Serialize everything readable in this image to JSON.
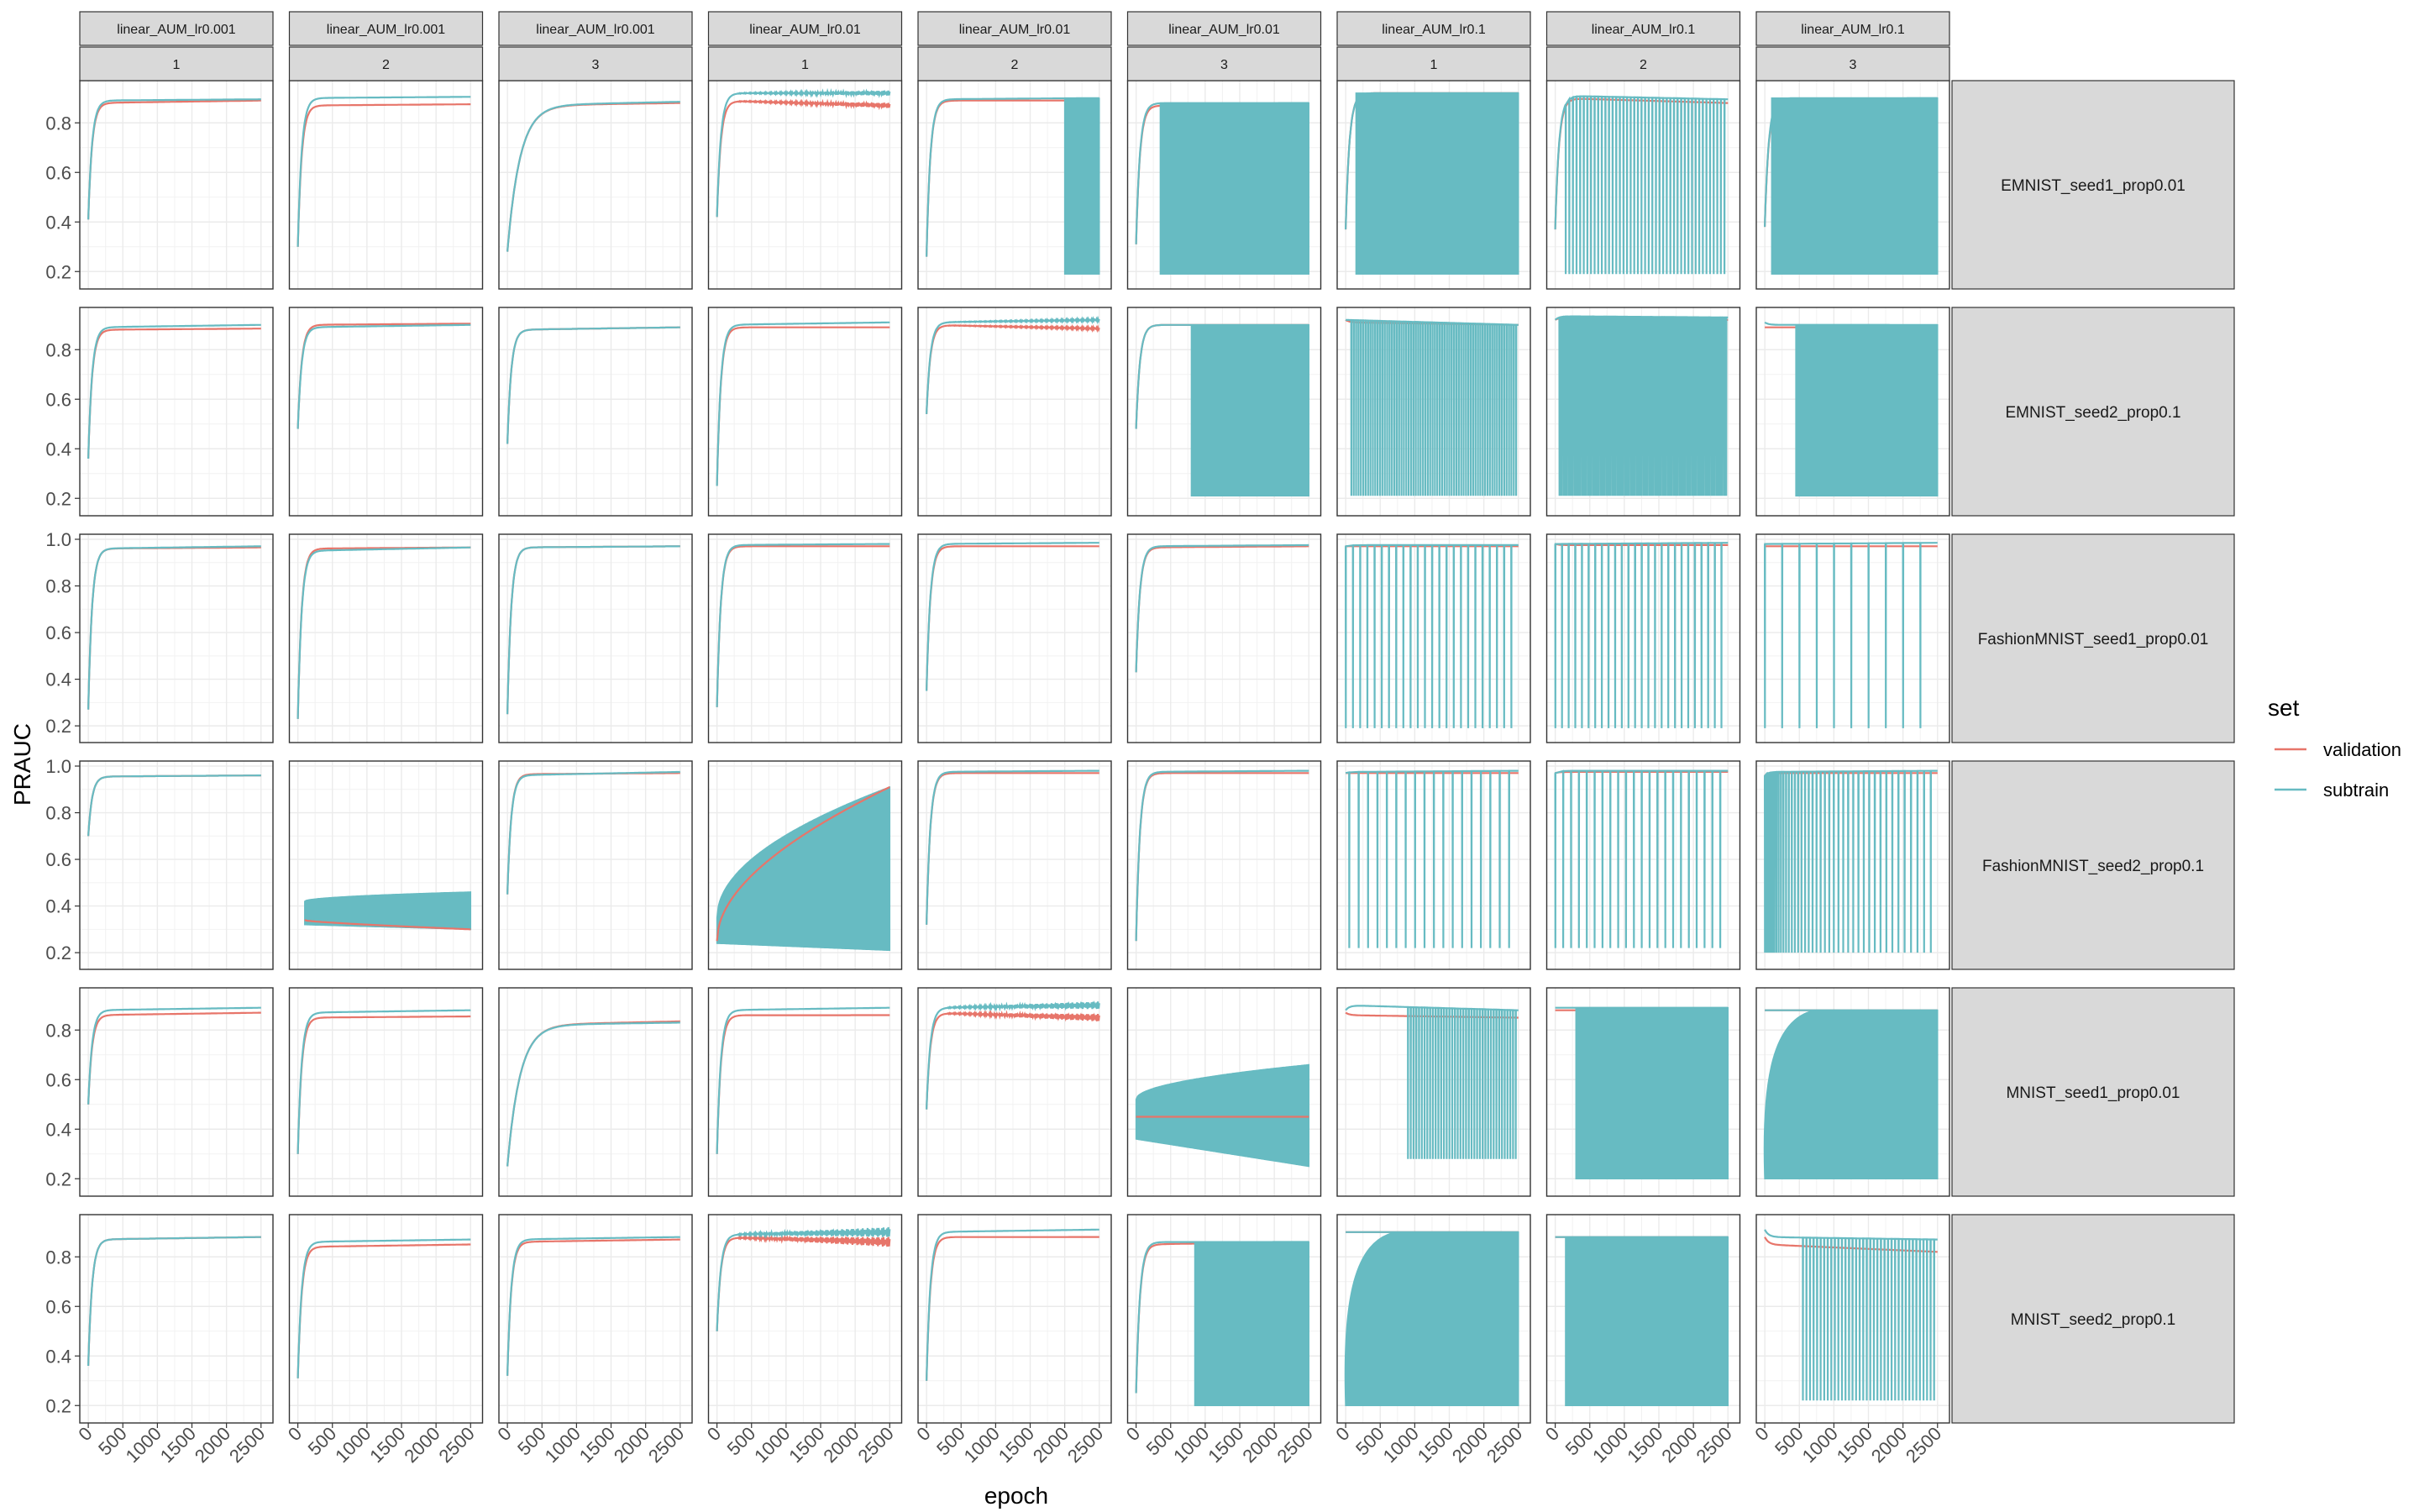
{
  "chart_data": {
    "type": "line",
    "title": "",
    "xlabel": "epoch",
    "ylabel": "PRAUC",
    "xlim": [
      0,
      2500
    ],
    "x_ticks": [
      0,
      500,
      1000,
      1500,
      2000,
      2500
    ],
    "grid": true,
    "legend": {
      "title": "set",
      "position": "right",
      "entries": [
        {
          "name": "validation",
          "color": "#E7756A"
        },
        {
          "name": "subtrain",
          "color": "#67BBC2"
        }
      ]
    },
    "column_facets": [
      {
        "model": "linear_AUM_lr0.001",
        "seed": "1"
      },
      {
        "model": "linear_AUM_lr0.001",
        "seed": "2"
      },
      {
        "model": "linear_AUM_lr0.001",
        "seed": "3"
      },
      {
        "model": "linear_AUM_lr0.01",
        "seed": "1"
      },
      {
        "model": "linear_AUM_lr0.01",
        "seed": "2"
      },
      {
        "model": "linear_AUM_lr0.01",
        "seed": "3"
      },
      {
        "model": "linear_AUM_lr0.1",
        "seed": "1"
      },
      {
        "model": "linear_AUM_lr0.1",
        "seed": "2"
      },
      {
        "model": "linear_AUM_lr0.1",
        "seed": "3"
      }
    ],
    "row_facets": [
      {
        "label": "EMNIST_seed1_prop0.01",
        "ylim": [
          0.15,
          0.95
        ],
        "y_ticks": [
          0.2,
          0.4,
          0.6,
          0.8
        ]
      },
      {
        "label": "EMNIST_seed2_prop0.1",
        "ylim": [
          0.15,
          0.95
        ],
        "y_ticks": [
          0.2,
          0.4,
          0.6,
          0.8
        ]
      },
      {
        "label": "FashionMNIST_seed1_prop0.01",
        "ylim": [
          0.15,
          1.0
        ],
        "y_ticks": [
          0.2,
          0.4,
          0.6,
          0.8,
          1.0
        ]
      },
      {
        "label": "FashionMNIST_seed2_prop0.1",
        "ylim": [
          0.15,
          1.0
        ],
        "y_ticks": [
          0.2,
          0.4,
          0.6,
          0.8,
          1.0
        ]
      },
      {
        "label": "MNIST_seed1_prop0.01",
        "ylim": [
          0.15,
          0.95
        ],
        "y_ticks": [
          0.2,
          0.4,
          0.6,
          0.8
        ]
      },
      {
        "label": "MNIST_seed2_prop0.1",
        "ylim": [
          0.15,
          0.95
        ],
        "y_ticks": [
          0.2,
          0.4,
          0.6,
          0.8
        ]
      }
    ],
    "panels": [
      [
        {
          "kind": "smooth",
          "v": [
            0.41,
            0.88,
            0.89
          ],
          "s": [
            0.41,
            0.89,
            0.895
          ]
        },
        {
          "kind": "smooth",
          "v": [
            0.3,
            0.87,
            0.875
          ],
          "s": [
            0.3,
            0.9,
            0.905
          ]
        },
        {
          "kind": "smooth",
          "v": [
            0.28,
            0.87,
            0.88
          ],
          "s": [
            0.28,
            0.87,
            0.885
          ],
          "slow": true
        },
        {
          "kind": "smooth",
          "v": [
            0.42,
            0.89,
            0.87
          ],
          "s": [
            0.42,
            0.92,
            0.92
          ],
          "jitter": 0.01
        },
        {
          "kind": "band_end",
          "v": [
            0.26,
            0.89,
            0.89
          ],
          "s": [
            0.26,
            0.895,
            0.9
          ],
          "band": [
            2000,
            2500
          ],
          "low": 0.19
        },
        {
          "kind": "band",
          "v": [
            0.31,
            0.87,
            0.87
          ],
          "s": [
            0.31,
            0.88,
            0.88
          ],
          "band": [
            350,
            2500
          ],
          "top": 0.88,
          "low": 0.19
        },
        {
          "kind": "band",
          "v": [
            0.37,
            0.92,
            0.92
          ],
          "s": [
            0.37,
            0.92,
            0.92
          ],
          "band": [
            150,
            2500
          ],
          "top": 0.92,
          "low": 0.19
        },
        {
          "kind": "spikes",
          "v": [
            0.37,
            0.9,
            0.88
          ],
          "s": [
            0.37,
            0.91,
            0.895
          ],
          "start": 150,
          "count": 45,
          "low": 0.19
        },
        {
          "kind": "band",
          "v": [
            0.38,
            0.89,
            0.89
          ],
          "s": [
            0.38,
            0.9,
            0.9
          ],
          "band": [
            100,
            2500
          ],
          "top": 0.9,
          "low": 0.19
        }
      ],
      [
        {
          "kind": "smooth",
          "v": [
            0.36,
            0.88,
            0.885
          ],
          "s": [
            0.36,
            0.89,
            0.9
          ]
        },
        {
          "kind": "smooth",
          "v": [
            0.48,
            0.9,
            0.905
          ],
          "s": [
            0.48,
            0.89,
            0.9
          ]
        },
        {
          "kind": "smooth",
          "v": [
            0.42,
            0.88,
            0.89
          ],
          "s": [
            0.42,
            0.88,
            0.89
          ]
        },
        {
          "kind": "smooth",
          "v": [
            0.25,
            0.89,
            0.89
          ],
          "s": [
            0.25,
            0.9,
            0.91
          ]
        },
        {
          "kind": "smooth",
          "v": [
            0.54,
            0.9,
            0.885
          ],
          "s": [
            0.54,
            0.91,
            0.92
          ],
          "jitter": 0.005
        },
        {
          "kind": "band",
          "v": [
            0.48,
            0.9,
            0.9
          ],
          "s": [
            0.48,
            0.9,
            0.9
          ],
          "band": [
            800,
            2500
          ],
          "top": 0.9,
          "low": 0.21
        },
        {
          "kind": "spikes",
          "v": [
            0.92,
            0.91,
            0.9
          ],
          "s": [
            0.92,
            0.92,
            0.9
          ],
          "start": 80,
          "count": 70,
          "low": 0.21
        },
        {
          "kind": "spikes",
          "v": [
            0.92,
            0.93,
            0.92
          ],
          "s": [
            0.92,
            0.935,
            0.93
          ],
          "start": 60,
          "count": 90,
          "low": 0.21
        },
        {
          "kind": "band",
          "v": [
            0.89,
            0.89,
            0.89
          ],
          "s": [
            0.91,
            0.9,
            0.9
          ],
          "band": [
            450,
            2500
          ],
          "top": 0.9,
          "low": 0.21
        }
      ],
      [
        {
          "kind": "smooth",
          "v": [
            0.27,
            0.96,
            0.965
          ],
          "s": [
            0.27,
            0.96,
            0.97
          ]
        },
        {
          "kind": "smooth",
          "v": [
            0.23,
            0.96,
            0.965
          ],
          "s": [
            0.23,
            0.95,
            0.965
          ]
        },
        {
          "kind": "smooth",
          "v": [
            0.25,
            0.965,
            0.97
          ],
          "s": [
            0.25,
            0.965,
            0.97
          ]
        },
        {
          "kind": "smooth",
          "v": [
            0.28,
            0.97,
            0.97
          ],
          "s": [
            0.28,
            0.975,
            0.98
          ]
        },
        {
          "kind": "smooth",
          "v": [
            0.35,
            0.97,
            0.97
          ],
          "s": [
            0.35,
            0.98,
            0.985
          ]
        },
        {
          "kind": "smooth",
          "v": [
            0.43,
            0.965,
            0.97
          ],
          "s": [
            0.43,
            0.97,
            0.975
          ]
        },
        {
          "kind": "spikes",
          "v": [
            0.97,
            0.97,
            0.97
          ],
          "s": [
            0.97,
            0.975,
            0.975
          ],
          "start": 0,
          "count": 24,
          "low": 0.19
        },
        {
          "kind": "spikes",
          "v": [
            0.98,
            0.975,
            0.975
          ],
          "s": [
            0.98,
            0.98,
            0.985
          ],
          "start": 0,
          "count": 26,
          "low": 0.19
        },
        {
          "kind": "spikes",
          "v": [
            0.97,
            0.97,
            0.97
          ],
          "s": [
            0.98,
            0.98,
            0.985
          ],
          "start": 0,
          "count": 10,
          "low": 0.19
        }
      ],
      [
        {
          "kind": "smooth",
          "v": [
            0.7,
            0.955,
            0.96
          ],
          "s": [
            0.7,
            0.955,
            0.96
          ]
        },
        {
          "kind": "fan",
          "v": [
            0.34,
            0.32,
            0.3
          ],
          "s": [
            0.34,
            0.42,
            0.46
          ],
          "lo": [
            0.32,
            0.3
          ],
          "hi": [
            0.42,
            0.46
          ],
          "start": 100
        },
        {
          "kind": "smooth",
          "v": [
            0.45,
            0.965,
            0.97
          ],
          "s": [
            0.45,
            0.96,
            0.975
          ]
        },
        {
          "kind": "fan",
          "v": [
            0.25,
            0.85,
            0.91
          ],
          "s": [
            0.25,
            0.84,
            0.9
          ],
          "lo": [
            0.24,
            0.21
          ],
          "hi": [
            0.35,
            0.91
          ],
          "start": 0
        },
        {
          "kind": "smooth",
          "v": [
            0.32,
            0.97,
            0.97
          ],
          "s": [
            0.32,
            0.975,
            0.98
          ]
        },
        {
          "kind": "smooth",
          "v": [
            0.25,
            0.97,
            0.97
          ],
          "s": [
            0.25,
            0.975,
            0.98
          ]
        },
        {
          "kind": "spikes",
          "v": [
            0.97,
            0.97,
            0.97
          ],
          "s": [
            0.97,
            0.975,
            0.98
          ],
          "start": 50,
          "count": 18,
          "low": 0.22
        },
        {
          "kind": "spikes",
          "v": [
            0.97,
            0.975,
            0.975
          ],
          "s": [
            0.97,
            0.98,
            0.98
          ],
          "start": 0,
          "count": 22,
          "low": 0.22
        },
        {
          "kind": "spikes",
          "v": [
            0.96,
            0.97,
            0.97
          ],
          "s": [
            0.96,
            0.975,
            0.98
          ],
          "start": 0,
          "count": 45,
          "low": 0.2,
          "dense_front": true
        }
      ],
      [
        {
          "kind": "smooth",
          "v": [
            0.5,
            0.86,
            0.87
          ],
          "s": [
            0.5,
            0.88,
            0.89
          ]
        },
        {
          "kind": "smooth",
          "v": [
            0.3,
            0.85,
            0.855
          ],
          "s": [
            0.3,
            0.87,
            0.88
          ]
        },
        {
          "kind": "smooth",
          "v": [
            0.25,
            0.82,
            0.835
          ],
          "s": [
            0.25,
            0.82,
            0.83
          ],
          "slow": true
        },
        {
          "kind": "smooth",
          "v": [
            0.3,
            0.86,
            0.86
          ],
          "s": [
            0.3,
            0.88,
            0.89
          ]
        },
        {
          "kind": "smooth",
          "v": [
            0.48,
            0.87,
            0.85
          ],
          "s": [
            0.48,
            0.89,
            0.9
          ],
          "jitter": 0.015
        },
        {
          "kind": "fan",
          "v": [
            0.45,
            0.45,
            0.45
          ],
          "s": [
            0.45,
            0.55,
            0.66
          ],
          "lo": [
            0.36,
            0.25
          ],
          "hi": [
            0.52,
            0.66
          ],
          "start": 0
        },
        {
          "kind": "spikes",
          "v": [
            0.87,
            0.86,
            0.85
          ],
          "s": [
            0.88,
            0.9,
            0.88
          ],
          "start": 900,
          "count": 40,
          "low": 0.28
        },
        {
          "kind": "band",
          "v": [
            0.88,
            0.88,
            0.88
          ],
          "s": [
            0.89,
            0.89,
            0.89
          ],
          "band": [
            300,
            2500
          ],
          "top": 0.89,
          "low": 0.2
        },
        {
          "kind": "band",
          "v": [
            0.88,
            0.88,
            0.88
          ],
          "s": [
            0.88,
            0.88,
            0.88
          ],
          "band": [
            0,
            2500
          ],
          "top": 0.88,
          "low": 0.2,
          "rounded": true
        }
      ],
      [
        {
          "kind": "smooth",
          "v": [
            0.36,
            0.87,
            0.88
          ],
          "s": [
            0.36,
            0.87,
            0.88
          ]
        },
        {
          "kind": "smooth",
          "v": [
            0.31,
            0.84,
            0.85
          ],
          "s": [
            0.31,
            0.86,
            0.87
          ]
        },
        {
          "kind": "smooth",
          "v": [
            0.32,
            0.86,
            0.87
          ],
          "s": [
            0.32,
            0.87,
            0.88
          ]
        },
        {
          "kind": "smooth",
          "v": [
            0.5,
            0.88,
            0.86
          ],
          "s": [
            0.5,
            0.89,
            0.9
          ],
          "jitter": 0.02
        },
        {
          "kind": "smooth",
          "v": [
            0.3,
            0.88,
            0.88
          ],
          "s": [
            0.3,
            0.9,
            0.91
          ]
        },
        {
          "kind": "band",
          "v": [
            0.25,
            0.85,
            0.86
          ],
          "s": [
            0.25,
            0.86,
            0.86
          ],
          "band": [
            850,
            2500
          ],
          "top": 0.86,
          "low": 0.2
        },
        {
          "kind": "band",
          "v": [
            0.9,
            0.9,
            0.9
          ],
          "s": [
            0.9,
            0.9,
            0.9
          ],
          "band": [
            0,
            2500
          ],
          "top": 0.9,
          "low": 0.2,
          "rounded": true
        },
        {
          "kind": "band",
          "v": [
            0.88,
            0.88,
            0.88
          ],
          "s": [
            0.88,
            0.88,
            0.88
          ],
          "band": [
            150,
            2500
          ],
          "top": 0.88,
          "low": 0.2
        },
        {
          "kind": "spikes",
          "v": [
            0.88,
            0.85,
            0.82
          ],
          "s": [
            0.91,
            0.88,
            0.87
          ],
          "start": 550,
          "count": 38,
          "low": 0.22
        }
      ]
    ]
  }
}
